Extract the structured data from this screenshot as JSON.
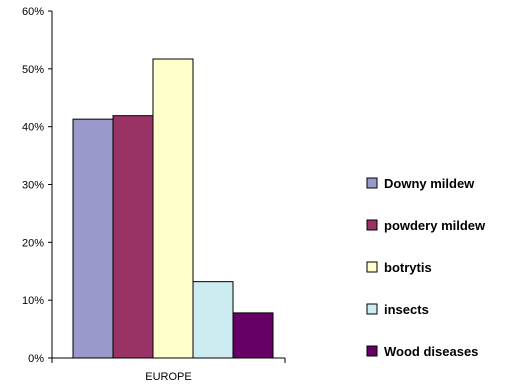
{
  "chart_data": {
    "type": "bar",
    "categories": [
      "EUROPE"
    ],
    "series": [
      {
        "name": "Downy mildew",
        "values": [
          41.3
        ],
        "color": "#9999cc"
      },
      {
        "name": "powdery mildew",
        "values": [
          41.9
        ],
        "color": "#993366"
      },
      {
        "name": "botrytis",
        "values": [
          51.7
        ],
        "color": "#ffffcc"
      },
      {
        "name": "insects",
        "values": [
          13.2
        ],
        "color": "#ccecf2"
      },
      {
        "name": "Wood diseases",
        "values": [
          7.8
        ],
        "color": "#660066"
      }
    ],
    "title": "",
    "xlabel": "",
    "ylabel": "",
    "ylim": [
      0,
      60
    ],
    "yticks": [
      "0%",
      "10%",
      "20%",
      "30%",
      "40%",
      "50%",
      "60%"
    ],
    "grid": false,
    "legend_position": "right"
  }
}
